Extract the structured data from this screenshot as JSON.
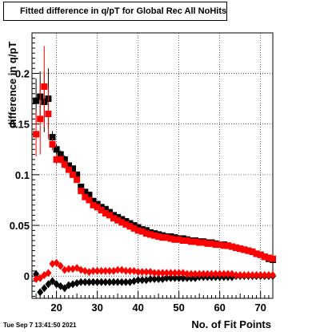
{
  "chart_data": {
    "type": "scatter",
    "title": "Fitted difference in q/pT for Global Rec All NoHits",
    "xlabel": "No. of Fit Points",
    "ylabel": "difference in q/pT",
    "xlim": [
      14,
      73
    ],
    "ylim": [
      -0.022,
      0.24
    ],
    "x_ticks": [
      20,
      30,
      40,
      50,
      60,
      70
    ],
    "y_ticks": [
      0,
      0.05,
      0.1,
      0.15,
      0.2
    ],
    "x_tick_labels": [
      "20",
      "30",
      "40",
      "50",
      "60",
      "70"
    ],
    "y_tick_labels": [
      "0",
      "0.05",
      "0.1",
      "0.15",
      "0.2"
    ],
    "grid": true,
    "timestamp": "Tue Sep  7 13:41:50 2021",
    "series": [
      {
        "color": "#000000",
        "marker": "square",
        "x": [
          15,
          16,
          17,
          18,
          19,
          20,
          21,
          22,
          23,
          24,
          25,
          26,
          27,
          28,
          29,
          30,
          31,
          32,
          33,
          34,
          35,
          36,
          37,
          38,
          39,
          40,
          41,
          42,
          43,
          44,
          45,
          46,
          47,
          48,
          49,
          50,
          51,
          52,
          53,
          54,
          55,
          56,
          57,
          58,
          59,
          60,
          61,
          62,
          63,
          64,
          65,
          66,
          67,
          68,
          69,
          70,
          71,
          72,
          73
        ],
        "y": [
          0.173,
          0.177,
          0.172,
          0.175,
          0.137,
          0.125,
          0.12,
          0.115,
          0.109,
          0.106,
          0.1,
          0.088,
          0.083,
          0.08,
          0.074,
          0.071,
          0.068,
          0.066,
          0.063,
          0.06,
          0.058,
          0.056,
          0.054,
          0.052,
          0.05,
          0.048,
          0.046,
          0.045,
          0.043,
          0.042,
          0.041,
          0.04,
          0.039,
          0.039,
          0.038,
          0.037,
          0.037,
          0.036,
          0.035,
          0.035,
          0.034,
          0.034,
          0.033,
          0.033,
          0.032,
          0.031,
          0.031,
          0.03,
          0.029,
          0.028,
          0.027,
          0.026,
          0.025,
          0.024,
          0.022,
          0.021,
          0.019,
          0.017,
          0.016
        ],
        "err": [
          0.022,
          0.025,
          0.03,
          0.03,
          0.006,
          0.005,
          0.004,
          0.004,
          0.003,
          0.003,
          0.003,
          0.003,
          0.002,
          0.002,
          0.002,
          0.002,
          0.002,
          0.002,
          0.002,
          0.002,
          0.002,
          0.002,
          0.002,
          0.002,
          0.002,
          0.002,
          0.002,
          0.002,
          0.002,
          0.002,
          0.002,
          0.002,
          0.002,
          0.002,
          0.002,
          0.002,
          0.002,
          0.002,
          0.002,
          0.002,
          0.002,
          0.002,
          0.002,
          0.002,
          0.002,
          0.002,
          0.002,
          0.002,
          0.002,
          0.002,
          0.002,
          0.002,
          0.002,
          0.002,
          0.002,
          0.002,
          0.002,
          0.002,
          0.002
        ]
      },
      {
        "color": "#ff0000",
        "marker": "square",
        "x": [
          15,
          16,
          17,
          18,
          19,
          20,
          21,
          22,
          23,
          24,
          25,
          26,
          27,
          28,
          29,
          30,
          31,
          32,
          33,
          34,
          35,
          36,
          37,
          38,
          39,
          40,
          41,
          42,
          43,
          44,
          45,
          46,
          47,
          48,
          49,
          50,
          51,
          52,
          53,
          54,
          55,
          56,
          57,
          58,
          59,
          60,
          61,
          62,
          63,
          64,
          65,
          66,
          67,
          68,
          69,
          70,
          71,
          72,
          73
        ],
        "y": [
          0.14,
          0.155,
          0.187,
          0.16,
          0.13,
          0.115,
          0.115,
          0.11,
          0.105,
          0.1,
          0.095,
          0.084,
          0.078,
          0.075,
          0.07,
          0.068,
          0.065,
          0.062,
          0.06,
          0.057,
          0.055,
          0.053,
          0.051,
          0.049,
          0.047,
          0.045,
          0.044,
          0.042,
          0.041,
          0.04,
          0.039,
          0.038,
          0.038,
          0.037,
          0.036,
          0.036,
          0.035,
          0.035,
          0.034,
          0.034,
          0.033,
          0.033,
          0.032,
          0.032,
          0.031,
          0.031,
          0.03,
          0.03,
          0.029,
          0.028,
          0.027,
          0.026,
          0.025,
          0.024,
          0.022,
          0.021,
          0.019,
          0.018,
          0.017
        ],
        "err": [
          0.022,
          0.035,
          0.04,
          0.025,
          0.006,
          0.005,
          0.004,
          0.004,
          0.003,
          0.003,
          0.003,
          0.003,
          0.002,
          0.002,
          0.002,
          0.002,
          0.002,
          0.002,
          0.002,
          0.002,
          0.002,
          0.002,
          0.002,
          0.002,
          0.002,
          0.002,
          0.002,
          0.002,
          0.002,
          0.002,
          0.002,
          0.002,
          0.002,
          0.002,
          0.002,
          0.002,
          0.002,
          0.002,
          0.002,
          0.002,
          0.002,
          0.002,
          0.002,
          0.002,
          0.002,
          0.002,
          0.002,
          0.002,
          0.002,
          0.002,
          0.002,
          0.002,
          0.002,
          0.002,
          0.002,
          0.002,
          0.002,
          0.002,
          0.002
        ]
      },
      {
        "color": "#000000",
        "marker": "diamond",
        "x": [
          15,
          16,
          17,
          18,
          19,
          20,
          21,
          22,
          23,
          24,
          25,
          26,
          27,
          28,
          29,
          30,
          31,
          32,
          33,
          34,
          35,
          36,
          37,
          38,
          39,
          40,
          41,
          42,
          43,
          44,
          45,
          46,
          47,
          48,
          49,
          50,
          51,
          52,
          53,
          54,
          55,
          56,
          57,
          58,
          59,
          60,
          61,
          62,
          63,
          64,
          65,
          66,
          67,
          68,
          69,
          70,
          71,
          72,
          73
        ],
        "y": [
          0.002,
          -0.016,
          -0.012,
          -0.008,
          -0.005,
          -0.008,
          -0.01,
          -0.012,
          -0.009,
          -0.008,
          -0.007,
          -0.006,
          -0.006,
          -0.006,
          -0.006,
          -0.006,
          -0.006,
          -0.006,
          -0.006,
          -0.006,
          -0.006,
          -0.006,
          -0.006,
          -0.006,
          -0.005,
          -0.004,
          -0.004,
          -0.004,
          -0.003,
          -0.003,
          -0.003,
          -0.003,
          -0.002,
          -0.002,
          -0.002,
          -0.002,
          -0.002,
          -0.002,
          -0.002,
          -0.002,
          -0.001,
          -0.001,
          -0.001,
          -0.001,
          -0.001,
          -0.001,
          -0.001,
          -0.001,
          -0.001,
          0,
          0,
          0,
          0,
          0,
          0,
          0,
          0,
          0,
          0
        ],
        "err": [
          0.003,
          0.003,
          0.003,
          0.002,
          0.002,
          0.002,
          0.002,
          0.002,
          0.001,
          0.001,
          0.001,
          0.001,
          0.001,
          0.001,
          0.001,
          0.001,
          0.001,
          0.001,
          0.001,
          0.001,
          0.001,
          0.001,
          0.001,
          0.001,
          0.001,
          0.001,
          0.001,
          0.001,
          0.001,
          0.001,
          0.001,
          0.001,
          0.001,
          0.001,
          0.001,
          0.001,
          0.001,
          0.001,
          0.001,
          0.001,
          0.001,
          0.001,
          0.001,
          0.001,
          0.001,
          0.001,
          0.001,
          0.001,
          0.001,
          0.001,
          0.001,
          0.001,
          0.001,
          0.001,
          0.001,
          0.001,
          0.001,
          0.001,
          0.001
        ]
      },
      {
        "color": "#ff0000",
        "marker": "diamond",
        "x": [
          15,
          16,
          17,
          18,
          19,
          20,
          21,
          22,
          23,
          24,
          25,
          26,
          27,
          28,
          29,
          30,
          31,
          32,
          33,
          34,
          35,
          36,
          37,
          38,
          39,
          40,
          41,
          42,
          43,
          44,
          45,
          46,
          47,
          48,
          49,
          50,
          51,
          52,
          53,
          54,
          55,
          56,
          57,
          58,
          59,
          60,
          61,
          62,
          63,
          64,
          65,
          66,
          67,
          68,
          69,
          70,
          71,
          72,
          73
        ],
        "y": [
          -0.003,
          -0.002,
          0.001,
          0.003,
          0.012,
          0.013,
          0.01,
          0.006,
          0.007,
          0.007,
          0.008,
          0.006,
          0.005,
          0.004,
          0.005,
          0.005,
          0.005,
          0.005,
          0.005,
          0.005,
          0.006,
          0.006,
          0.005,
          0.005,
          0.005,
          0.004,
          0.004,
          0.004,
          0.004,
          0.003,
          0.003,
          0.003,
          0.003,
          0.003,
          0.003,
          0.003,
          0.003,
          0.002,
          0.002,
          0.002,
          0.002,
          0.002,
          0.002,
          0.002,
          0.002,
          0.002,
          0.002,
          0.002,
          0.002,
          0.001,
          0.001,
          0.001,
          0.001,
          0.001,
          0.001,
          0.001,
          0.001,
          0.001,
          0.001
        ],
        "err": [
          0.003,
          0.003,
          0.003,
          0.002,
          0.002,
          0.002,
          0.002,
          0.002,
          0.001,
          0.001,
          0.001,
          0.001,
          0.001,
          0.001,
          0.001,
          0.001,
          0.001,
          0.001,
          0.001,
          0.001,
          0.001,
          0.001,
          0.001,
          0.001,
          0.001,
          0.001,
          0.001,
          0.001,
          0.001,
          0.001,
          0.001,
          0.001,
          0.001,
          0.001,
          0.001,
          0.001,
          0.001,
          0.001,
          0.001,
          0.001,
          0.001,
          0.001,
          0.001,
          0.001,
          0.001,
          0.001,
          0.001,
          0.001,
          0.001,
          0.001,
          0.001,
          0.001,
          0.001,
          0.001,
          0.001,
          0.001,
          0.001,
          0.001,
          0.001
        ]
      }
    ]
  }
}
